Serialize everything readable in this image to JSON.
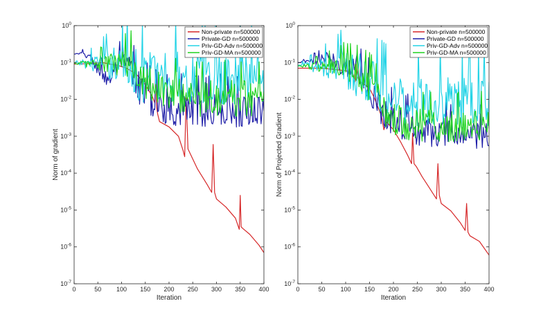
{
  "chart_data": [
    {
      "type": "line",
      "xlabel": "Iteration",
      "ylabel": "Norm of gradient",
      "xlim": [
        0,
        400
      ],
      "ylim": [
        1e-07,
        1
      ],
      "yscale": "log",
      "xticks": [
        "0",
        "50",
        "100",
        "150",
        "200",
        "250",
        "300",
        "350",
        "400"
      ],
      "yticks": [
        "10^-7",
        "10^-6",
        "10^-5",
        "10^-4",
        "10^-3",
        "10^-2",
        "10^-1",
        "10^0"
      ],
      "grid": false,
      "legend": "top-right",
      "series": [
        {
          "name": "Non-private n=500000",
          "color": "#d62728",
          "x": [
            0,
            20,
            40,
            60,
            75,
            90,
            110,
            130,
            150,
            165,
            170,
            172,
            174,
            176,
            180,
            200,
            220,
            230,
            233,
            236,
            240,
            260,
            280,
            290,
            293,
            296,
            300,
            320,
            340,
            348,
            350,
            352,
            355,
            370,
            390,
            400
          ],
          "y": [
            0.09,
            0.092,
            0.095,
            0.1,
            0.09,
            0.085,
            0.07,
            0.05,
            0.025,
            0.012,
            0.008,
            0.05,
            0.006,
            0.004,
            0.0025,
            0.0018,
            0.001,
            0.0004,
            0.00028,
            0.011,
            0.00045,
            0.00013,
            5e-05,
            3e-05,
            0.0006,
            3e-05,
            2e-05,
            1.2e-05,
            6e-06,
            3e-06,
            2.5e-05,
            3.5e-06,
            3.2e-06,
            2.2e-06,
            1.1e-06,
            7e-07
          ],
          "noise": 0,
          "ns": 0
        },
        {
          "name": "Private-GD n=500000",
          "color": "#1f1fa8",
          "x": [
            0,
            20,
            30,
            40,
            50,
            60,
            70,
            80,
            90,
            100,
            110,
            120,
            130,
            150,
            170,
            200,
            250,
            300,
            350,
            400
          ],
          "y": [
            0.17,
            0.17,
            0.15,
            0.1,
            0.07,
            0.05,
            0.035,
            0.045,
            0.07,
            0.085,
            0.08,
            0.06,
            0.03,
            0.015,
            0.008,
            0.006,
            0.0055,
            0.0055,
            0.0055,
            0.0055
          ],
          "noise": 0.5,
          "ns": 1
        },
        {
          "name": "Priv-GD-Adv n=500000",
          "color": "#22d3e6",
          "x": [
            0,
            50,
            100,
            110,
            120,
            130,
            140,
            160,
            200,
            300,
            400
          ],
          "y": [
            0.095,
            0.1,
            0.1,
            0.1,
            0.085,
            0.06,
            0.05,
            0.045,
            0.045,
            0.045,
            0.045
          ],
          "noise": 0.8,
          "ns": 2
        },
        {
          "name": "Priv-GD-MA n=500000",
          "color": "#1fd21f",
          "x": [
            0,
            50,
            100,
            120,
            140,
            160,
            180,
            200,
            250,
            300,
            400
          ],
          "y": [
            0.095,
            0.095,
            0.093,
            0.085,
            0.05,
            0.03,
            0.02,
            0.015,
            0.012,
            0.012,
            0.012
          ],
          "noise": 0.55,
          "ns": 3
        }
      ]
    },
    {
      "type": "line",
      "xlabel": "Iteration",
      "ylabel": "Norm of Projected Gradient",
      "xlim": [
        0,
        400
      ],
      "ylim": [
        1e-07,
        1
      ],
      "yscale": "log",
      "xticks": [
        "0",
        "50",
        "100",
        "150",
        "200",
        "250",
        "300",
        "350",
        "400"
      ],
      "yticks": [
        "10^-7",
        "10^-6",
        "10^-5",
        "10^-4",
        "10^-3",
        "10^-2",
        "10^-1",
        "10^0"
      ],
      "grid": false,
      "legend": "top-right",
      "series": [
        {
          "name": "Non-private n=500000",
          "color": "#d62728",
          "x": [
            0,
            50,
            100,
            115,
            120,
            122,
            125,
            130,
            140,
            150,
            160,
            175,
            180,
            185,
            200,
            215,
            230,
            238,
            240,
            243,
            248,
            260,
            275,
            290,
            293,
            296,
            300,
            320,
            340,
            350,
            353,
            356,
            360,
            380,
            400
          ],
          "y": [
            0.07,
            0.07,
            0.06,
            0.05,
            0.03,
            0.09,
            0.04,
            0.03,
            0.025,
            0.02,
            0.011,
            0.0035,
            0.0015,
            0.0025,
            0.0015,
            0.0007,
            0.0003,
            0.00018,
            0.0012,
            0.00018,
            0.00015,
            8e-05,
            4e-05,
            2e-05,
            0.00018,
            2.5e-05,
            1.5e-05,
            9.5e-06,
            4.5e-06,
            2.8e-06,
            1.5e-05,
            2.5e-06,
            2e-06,
            1.4e-06,
            6e-07
          ],
          "noise": 0,
          "ns": 0
        },
        {
          "name": "Private-GD n=500000",
          "color": "#1f1fa8",
          "x": [
            0,
            40,
            60,
            80,
            100,
            110,
            120,
            125,
            130,
            133,
            136,
            140,
            160,
            180,
            200,
            250,
            300,
            350,
            400
          ],
          "y": [
            0.1,
            0.11,
            0.13,
            0.1,
            0.09,
            0.08,
            0.07,
            0.1,
            0.05,
            0.18,
            0.04,
            0.03,
            0.012,
            0.0045,
            0.003,
            0.0015,
            0.0012,
            0.0011,
            0.001
          ],
          "noise": 0.45,
          "ns": 4
        },
        {
          "name": "Priv-GD-Adv n=500000",
          "color": "#22d3e6",
          "x": [
            0,
            50,
            100,
            120,
            140,
            160,
            180,
            200,
            250,
            300,
            400
          ],
          "y": [
            0.085,
            0.085,
            0.08,
            0.06,
            0.04,
            0.025,
            0.015,
            0.012,
            0.01,
            0.01,
            0.01
          ],
          "noise": 0.75,
          "ns": 5
        },
        {
          "name": "Priv-GD-MA n=500000",
          "color": "#1fd21f",
          "x": [
            0,
            50,
            100,
            120,
            140,
            160,
            180,
            200,
            250,
            300,
            400
          ],
          "y": [
            0.08,
            0.08,
            0.07,
            0.05,
            0.03,
            0.015,
            0.006,
            0.003,
            0.0022,
            0.002,
            0.002
          ],
          "noise": 0.5,
          "ns": 6
        }
      ]
    }
  ]
}
